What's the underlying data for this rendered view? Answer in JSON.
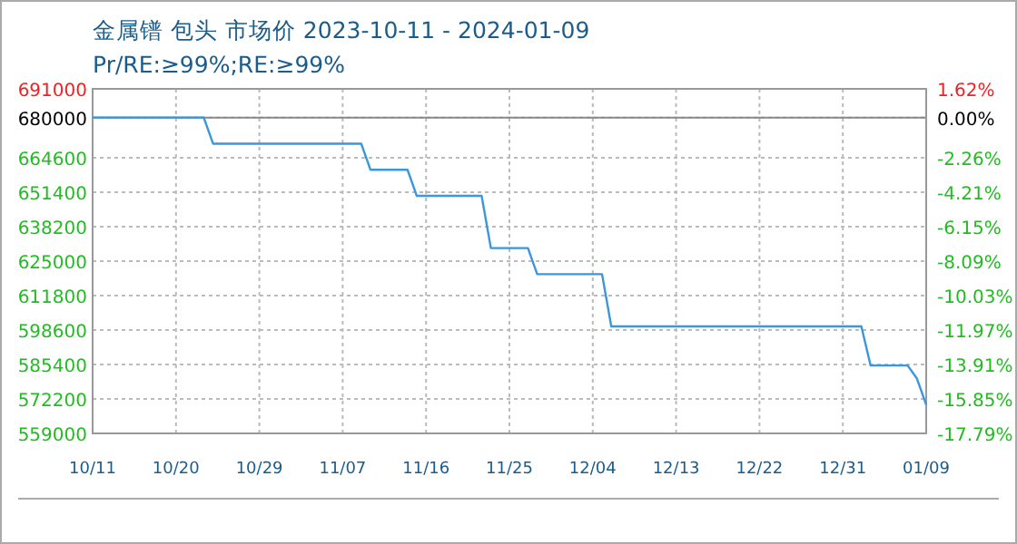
{
  "chart_data": {
    "type": "line",
    "title": "金属镨 包头 市场价 2023-10-11 - 2024-01-09",
    "subtitle": "Pr/RE:≥99%;RE:≥99%",
    "x": [
      "2023-10-11",
      "2023-10-23",
      "2023-10-24",
      "2023-11-09",
      "2023-11-10",
      "2023-11-14",
      "2023-11-15",
      "2023-11-22",
      "2023-11-23",
      "2023-11-27",
      "2023-11-28",
      "2023-12-05",
      "2023-12-06",
      "2024-01-02",
      "2024-01-03",
      "2024-01-07",
      "2024-01-08",
      "2024-01-09"
    ],
    "series": [
      {
        "color": "#3a96dd",
        "values": [
          680000,
          680000,
          670000,
          670000,
          660000,
          660000,
          650000,
          650000,
          630000,
          630000,
          620000,
          620000,
          600000,
          600000,
          585000,
          585000,
          580000,
          570000
        ]
      }
    ],
    "xlim": [
      "2023-10-11",
      "2024-01-09"
    ],
    "xticks": [
      {
        "value": "2023-10-11",
        "label": "10/11"
      },
      {
        "value": "2023-10-20",
        "label": "10/20"
      },
      {
        "value": "2023-10-29",
        "label": "10/29"
      },
      {
        "value": "2023-11-07",
        "label": "11/07"
      },
      {
        "value": "2023-11-16",
        "label": "11/16"
      },
      {
        "value": "2023-11-25",
        "label": "11/25"
      },
      {
        "value": "2023-12-04",
        "label": "12/04"
      },
      {
        "value": "2023-12-13",
        "label": "12/13"
      },
      {
        "value": "2023-12-22",
        "label": "12/22"
      },
      {
        "value": "2023-12-31",
        "label": "12/31"
      },
      {
        "value": "2024-01-09",
        "label": "01/09"
      }
    ],
    "ylim": [
      559000,
      691000
    ],
    "yticks": [
      559000,
      572200,
      585400,
      598600,
      611800,
      625000,
      638200,
      651400,
      664600,
      680000,
      691000
    ],
    "y2lim": [
      -17.79,
      1.62
    ],
    "y2ticks": [
      {
        "value": -17.79,
        "label": "-17.79%"
      },
      {
        "value": -15.85,
        "label": "-15.85%"
      },
      {
        "value": -13.91,
        "label": "-13.91%"
      },
      {
        "value": -11.97,
        "label": "-11.97%"
      },
      {
        "value": -10.03,
        "label": "-10.03%"
      },
      {
        "value": -8.09,
        "label": "-8.09%"
      },
      {
        "value": -6.15,
        "label": "-6.15%"
      },
      {
        "value": -4.21,
        "label": "-4.21%"
      },
      {
        "value": -2.26,
        "label": "-2.26%"
      },
      {
        "value": 0,
        "label": "0.00%"
      },
      {
        "value": 1.62,
        "label": "1.62%"
      }
    ],
    "grid": true,
    "marker": "none",
    "line_style": "solid"
  }
}
